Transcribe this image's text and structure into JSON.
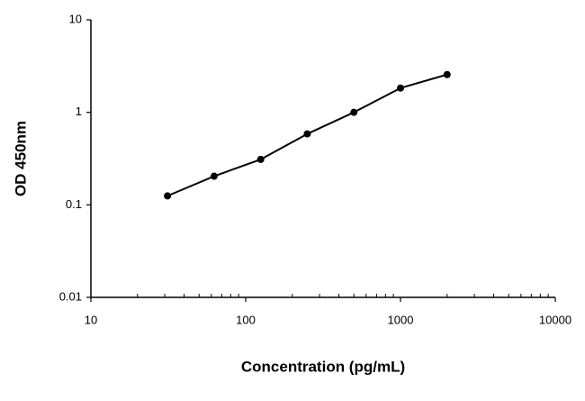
{
  "chart_data": {
    "type": "line",
    "x_label": "Concentration (pg/mL)",
    "y_label": "OD 450nm",
    "x": [
      31.25,
      62.5,
      125,
      250,
      500,
      1000,
      2000
    ],
    "series": [
      {
        "color": "#000000",
        "values": [
          0.125,
          0.204,
          0.31,
          0.585,
          1.0,
          1.83,
          2.56
        ]
      }
    ],
    "xlim": [
      10,
      10000
    ],
    "xticks": [
      10,
      100,
      1000,
      10000
    ],
    "ylim": [
      0.01,
      10
    ],
    "yticks": [
      0.01,
      0.1,
      1,
      10
    ],
    "xscale": "log",
    "yscale": "log",
    "grid": false,
    "markers": true
  }
}
